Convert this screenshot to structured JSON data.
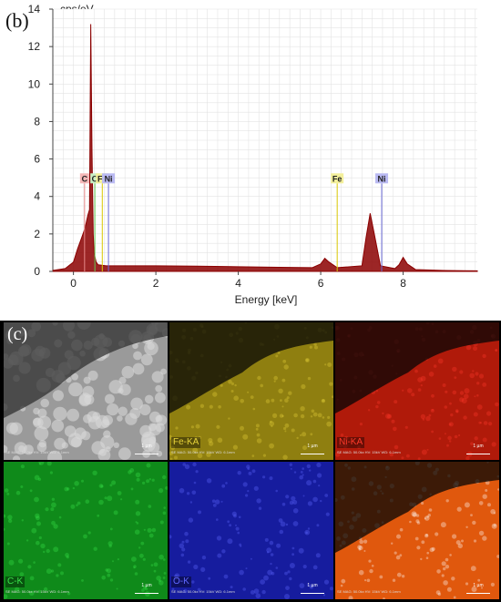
{
  "panel_b_label": "(b)",
  "panel_c_label": "(c)",
  "chart_data": {
    "type": "line",
    "title": "",
    "xlabel": "Energy [keV]",
    "ylabel": "cps/eV",
    "xlim": [
      -0.5,
      9.8
    ],
    "ylim": [
      0,
      14
    ],
    "x_ticks": [
      0,
      2,
      4,
      6,
      8
    ],
    "y_ticks": [
      0,
      2,
      4,
      6,
      8,
      10,
      12,
      14
    ],
    "grid": true,
    "series": [
      {
        "color": "#8b0000",
        "x": [
          -0.5,
          -0.2,
          0.0,
          0.1,
          0.2,
          0.28,
          0.35,
          0.39,
          0.42,
          0.45,
          0.48,
          0.5,
          0.55,
          0.6,
          0.8,
          1.0,
          2.0,
          3.0,
          4.0,
          5.0,
          5.8,
          6.0,
          6.1,
          6.2,
          6.4,
          7.0,
          7.1,
          7.2,
          7.3,
          7.45,
          7.8,
          7.9,
          8.0,
          8.1,
          8.3,
          9.0,
          9.8
        ],
        "y": [
          0.05,
          0.15,
          0.5,
          1.2,
          1.8,
          2.3,
          3.0,
          3.3,
          13.2,
          6.5,
          2.0,
          1.0,
          0.5,
          0.35,
          0.3,
          0.3,
          0.3,
          0.28,
          0.25,
          0.22,
          0.2,
          0.4,
          0.7,
          0.5,
          0.2,
          0.3,
          1.8,
          3.1,
          2.0,
          0.3,
          0.15,
          0.35,
          0.75,
          0.4,
          0.1,
          0.05,
          0.03
        ]
      }
    ],
    "annotations": [
      {
        "label": "C",
        "x": 0.27,
        "y_top": 4.7,
        "color": "#f4b6b6",
        "line_color": "#e88a8a"
      },
      {
        "label": "O",
        "x": 0.52,
        "y_top": 4.7,
        "color": "#c9efc3",
        "line_color": "#66cc55"
      },
      {
        "label": "Fe",
        "x": 0.7,
        "y_top": 4.7,
        "color": "#f3ef9a",
        "line_color": "#d9c700"
      },
      {
        "label": "Ni",
        "x": 0.85,
        "y_top": 4.7,
        "color": "#b9b9f2",
        "line_color": "#6a6ad8"
      },
      {
        "label": "Fe",
        "x": 6.4,
        "y_top": 4.7,
        "color": "#f3ef9a",
        "line_color": "#d9c700"
      },
      {
        "label": "Ni",
        "x": 7.48,
        "y_top": 4.7,
        "color": "#b9b9f2",
        "line_color": "#6a6ad8"
      }
    ]
  },
  "maps": [
    {
      "name": "SE",
      "label": "",
      "caption": "SE MAG: 50.0kx HV: 15kV WD: 6.1mm",
      "scale": "1 µm",
      "bg": "#9a9a9a",
      "label_color": "#fff"
    },
    {
      "name": "Fe-KA",
      "label": "Fe-KA",
      "caption": "SE MAG: 50.0kx HV: 15kV WD: 6.1mm",
      "scale": "1 µm",
      "bg": "#8f7f10",
      "label_color": "#e6d23a"
    },
    {
      "name": "Ni-KA",
      "label": "Ni-KA",
      "caption": "SE MAG: 50.0kx HV: 15kV WD: 6.1mm",
      "scale": "1 µm",
      "bg": "#b01a0a",
      "label_color": "#ff3a2a"
    },
    {
      "name": "C-K",
      "label": "C-K",
      "caption": "SE MAG: 50.0kx HV: 15kV WD: 6.1mm",
      "scale": "1 µm",
      "bg": "#0f8a1a",
      "label_color": "#39e24a"
    },
    {
      "name": "O-K",
      "label": "O-K",
      "caption": "SE MAG: 50.0kx HV: 15kV WD: 6.1mm",
      "scale": "1 µm",
      "bg": "#161c9e",
      "label_color": "#5f66ff"
    },
    {
      "name": "overlay",
      "label": "",
      "caption": "SE MAG: 50.0kx HV: 15kV WD: 6.1mm",
      "scale": "1 µm",
      "bg": "#e0580d",
      "label_color": "#fff"
    }
  ]
}
